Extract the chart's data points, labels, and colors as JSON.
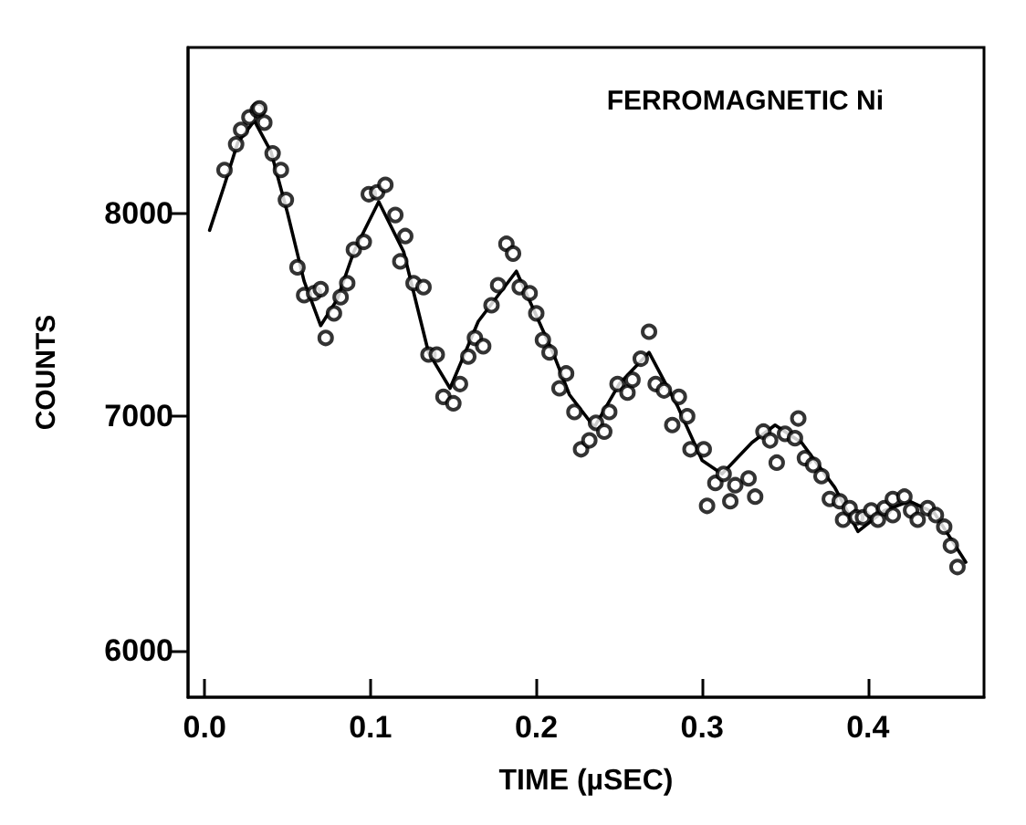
{
  "chart_data": {
    "type": "scatter",
    "xlabel": "TIME (µSEC)",
    "ylabel": "COUNTS",
    "annotations": [
      "FERROMAGNETIC Ni"
    ],
    "xlim": [
      -0.01,
      0.47
    ],
    "xticks": [
      {
        "value": 0,
        "label": "0.0"
      },
      0.1,
      0.2,
      0.3,
      0.4
    ],
    "ylim": [
      5820,
      8920
    ],
    "yticks": [
      6000,
      7000,
      8000
    ],
    "log": "y",
    "grid": false,
    "series": [
      {
        "color": "#000000",
        "marker": "circle",
        "x": [
          0.012,
          0.019,
          0.022,
          0.027,
          0.032,
          0.033,
          0.036,
          0.041,
          0.046,
          0.049,
          0.056,
          0.06,
          0.066,
          0.07,
          0.073,
          0.078,
          0.082,
          0.086,
          0.09,
          0.096,
          0.099,
          0.104,
          0.109,
          0.115,
          0.118,
          0.121,
          0.126,
          0.132,
          0.135,
          0.14,
          0.144,
          0.15,
          0.154,
          0.159,
          0.163,
          0.168,
          0.173,
          0.177,
          0.182,
          0.186,
          0.19,
          0.196,
          0.2,
          0.204,
          0.208,
          0.214,
          0.218,
          0.223,
          0.227,
          0.232,
          0.236,
          0.241,
          0.244,
          0.249,
          0.255,
          0.258,
          0.263,
          0.268,
          0.272,
          0.277,
          0.282,
          0.286,
          0.291,
          0.293,
          0.301,
          0.303,
          0.308,
          0.313,
          0.317,
          0.32,
          0.328,
          0.332,
          0.337,
          0.341,
          0.345,
          0.35,
          0.356,
          0.358,
          0.362,
          0.367,
          0.372,
          0.377,
          0.383,
          0.385,
          0.389,
          0.393,
          0.397,
          0.402,
          0.406,
          0.41,
          0.415,
          0.415,
          0.422,
          0.426,
          0.43,
          0.436,
          0.441,
          0.446,
          0.45,
          0.454
        ],
        "values": [
          8230,
          8370,
          8450,
          8520,
          8560,
          8570,
          8490,
          8320,
          8230,
          8070,
          7720,
          7580,
          7590,
          7610,
          7370,
          7490,
          7570,
          7640,
          7810,
          7850,
          8100,
          8110,
          8150,
          7990,
          7750,
          7880,
          7640,
          7620,
          7290,
          7290,
          7090,
          7060,
          7150,
          7280,
          7370,
          7330,
          7530,
          7630,
          7840,
          7790,
          7620,
          7590,
          7490,
          7360,
          7300,
          7130,
          7200,
          7020,
          6850,
          6890,
          6970,
          6930,
          7020,
          7150,
          7110,
          7170,
          7270,
          7400,
          7150,
          7120,
          6960,
          7090,
          7000,
          6850,
          6850,
          6600,
          6700,
          6740,
          6620,
          6690,
          6720,
          6640,
          6930,
          6890,
          6790,
          6920,
          6900,
          6990,
          6810,
          6780,
          6730,
          6630,
          6620,
          6540,
          6590,
          6550,
          6550,
          6580,
          6540,
          6590,
          6560,
          6630,
          6640,
          6580,
          6540,
          6590,
          6560,
          6510,
          6430,
          6340
        ]
      },
      {
        "type": "line",
        "color": "#000000",
        "marker": "none",
        "line_style": "solid",
        "x": [
          0.003,
          0.012,
          0.02,
          0.03,
          0.04,
          0.05,
          0.06,
          0.07,
          0.08,
          0.09,
          0.105,
          0.12,
          0.135,
          0.148,
          0.165,
          0.188,
          0.21,
          0.22,
          0.235,
          0.25,
          0.268,
          0.285,
          0.3,
          0.312,
          0.33,
          0.344,
          0.36,
          0.38,
          0.394,
          0.41,
          0.425,
          0.44,
          0.459
        ],
        "values": [
          7910,
          8150,
          8380,
          8500,
          8330,
          8000,
          7650,
          7430,
          7560,
          7800,
          8060,
          7800,
          7300,
          7130,
          7450,
          7700,
          7300,
          7100,
          6950,
          7150,
          7300,
          7050,
          6800,
          6740,
          6880,
          6960,
          6880,
          6680,
          6490,
          6580,
          6620,
          6570,
          6360
        ]
      }
    ]
  }
}
